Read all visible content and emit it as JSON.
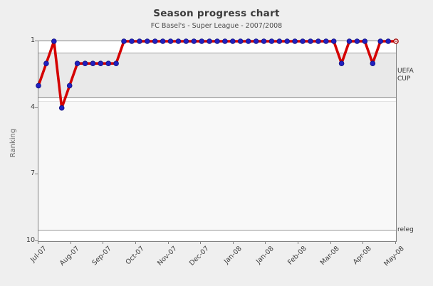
{
  "chart_data": {
    "type": "line",
    "title": "Season progress chart",
    "subtitle": "FC Basel's - Super League - 2007/2008",
    "ylabel": "Ranking",
    "xlabel": "",
    "y_inverted": true,
    "ylim": [
      1,
      10
    ],
    "y_ticks": [
      1,
      4,
      7,
      10
    ],
    "x_tick_labels": [
      "Jul-07",
      "Aug-07",
      "Sep-07",
      "Oct-07",
      "Nov-07",
      "Dec-07",
      "Jan-08",
      "Jan-08",
      "Feb-08",
      "Mar-08",
      "Apr-08",
      "May-08"
    ],
    "grid": "bands-only",
    "legend": "none",
    "series": [
      {
        "name": "FC Basel weekly ranking",
        "values": [
          3,
          2,
          1,
          4,
          3,
          2,
          2,
          2,
          2,
          2,
          2,
          1,
          1,
          1,
          1,
          1,
          1,
          1,
          1,
          1,
          1,
          1,
          1,
          1,
          1,
          1,
          1,
          1,
          1,
          1,
          1,
          1,
          1,
          1,
          1,
          1,
          1,
          1,
          1,
          2,
          1,
          1,
          1,
          2,
          1,
          1,
          1
        ]
      }
    ],
    "annotations": {
      "uefa_label": "UEFA CUP",
      "uefa_band_from": 1.5,
      "uefa_band_to": 3.5,
      "releg_label": "releg",
      "releg_line_at": 9.5
    },
    "colors": {
      "line": "#d40000",
      "marker_fill": "#2020c0",
      "marker_stroke": "#10107e",
      "final_marker_ring": "#a00000",
      "band_fill": "#e9e9e9",
      "page_bg": "#efefef",
      "plot_bg": "#ffffff"
    }
  }
}
